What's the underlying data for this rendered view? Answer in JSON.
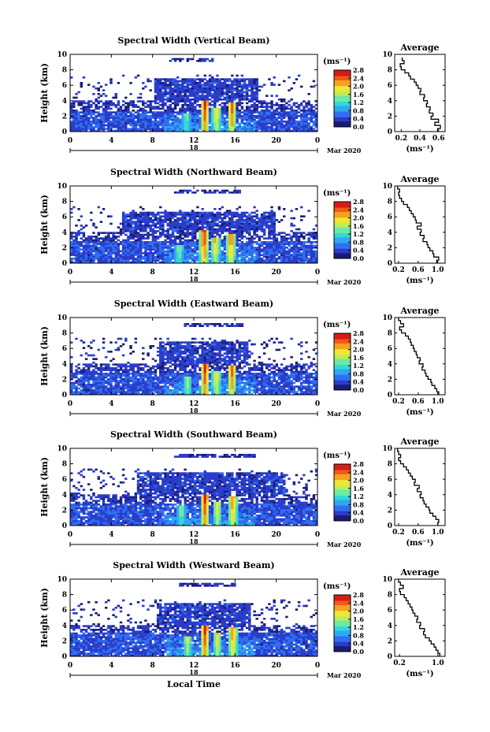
{
  "colors": {
    "colormap": [
      "#1b1b78",
      "#2a3cc8",
      "#2f6ff0",
      "#2fa8f2",
      "#33d8d8",
      "#6ee8a8",
      "#b8ee5c",
      "#f0e636",
      "#f7a21f",
      "#f05a1a",
      "#d81c14"
    ],
    "profile_line": "#000000"
  },
  "chart_data": [
    {
      "type": "heatmap",
      "title": "Spectral Width (Vertical Beam)",
      "ylabel": "Height (km)",
      "xlabel": "",
      "x_ticks": [
        "0",
        "4",
        "8",
        "12",
        "16",
        "20",
        "0"
      ],
      "y_ticks": [
        "0",
        "2",
        "4",
        "6",
        "8",
        "10"
      ],
      "xlim": [
        0,
        24
      ],
      "ylim": [
        0,
        10
      ],
      "date_day": "18",
      "date_month": "Mar 2020",
      "colorbar": {
        "units": "(ms⁻¹)",
        "ticks": [
          "0.0",
          "0.4",
          "0.8",
          "1.2",
          "1.6",
          "2.0",
          "2.4",
          "2.8"
        ],
        "range": [
          0,
          2.8
        ]
      },
      "layers": {
        "low_top": 2.6,
        "mid_top": 4.0,
        "cloud_start": 8.2,
        "cloud_end": 18.2,
        "cloud_base": 4.0,
        "cloud_top": 6.8,
        "high_band": [
          9.0,
          9.5
        ],
        "high_span": [
          9.6,
          14.0
        ]
      },
      "convective_cores": [
        {
          "time": 13.1,
          "top": 4.0,
          "peak": 2.8
        },
        {
          "time": 14.2,
          "top": 3.0,
          "peak": 2.2
        },
        {
          "time": 15.7,
          "top": 3.8,
          "peak": 2.6
        },
        {
          "time": 11.3,
          "top": 2.4,
          "peak": 1.6
        }
      ],
      "profile": {
        "title": "Average",
        "xlabel": "(ms⁻¹)",
        "x_ticks": [
          "0.2",
          "0.4",
          "0.6"
        ],
        "x_tick_values": [
          0.2,
          0.4,
          0.6
        ],
        "xlim": [
          0.13,
          0.67
        ],
        "y_ticks": [
          "0",
          "2",
          "4",
          "6",
          "8",
          "10"
        ],
        "height": [
          0.2,
          0.6,
          1.0,
          1.4,
          1.8,
          2.2,
          2.6,
          3.0,
          3.4,
          3.8,
          4.2,
          4.6,
          5.0,
          5.4,
          5.8,
          6.2,
          6.6,
          7.0,
          7.4,
          7.8,
          8.2,
          8.6,
          9.0,
          9.4
        ],
        "value": [
          0.59,
          0.62,
          0.56,
          0.6,
          0.52,
          0.54,
          0.5,
          0.51,
          0.47,
          0.48,
          0.44,
          0.45,
          0.4,
          0.41,
          0.38,
          0.36,
          0.34,
          0.3,
          0.28,
          0.24,
          0.2,
          0.19,
          0.23,
          0.21
        ]
      }
    },
    {
      "type": "heatmap",
      "title": "Spectral Width (Northward Beam)",
      "ylabel": "Height (km)",
      "xlabel": "",
      "x_ticks": [
        "0",
        "4",
        "8",
        "12",
        "16",
        "20",
        "0"
      ],
      "y_ticks": [
        "0",
        "2",
        "4",
        "6",
        "8",
        "10"
      ],
      "xlim": [
        0,
        24
      ],
      "ylim": [
        0,
        10
      ],
      "date_day": "18",
      "date_month": "Mar 2020",
      "colorbar": {
        "units": "(ms⁻¹)",
        "ticks": [
          "0.0",
          "0.4",
          "0.8",
          "1.2",
          "1.6",
          "2.0",
          "2.4",
          "2.8"
        ],
        "range": [
          0,
          2.8
        ]
      },
      "layers": {
        "low_top": 2.8,
        "mid_top": 4.0,
        "cloud_start": 5.0,
        "cloud_end": 20.0,
        "cloud_base": 4.0,
        "cloud_top": 6.6,
        "high_band": [
          9.0,
          9.6
        ],
        "high_span": [
          10.0,
          16.5
        ]
      },
      "convective_cores": [
        {
          "time": 13.0,
          "top": 4.2,
          "peak": 2.8
        },
        {
          "time": 14.1,
          "top": 3.4,
          "peak": 2.3
        },
        {
          "time": 15.6,
          "top": 3.8,
          "peak": 2.6
        },
        {
          "time": 10.6,
          "top": 2.4,
          "peak": 1.7
        }
      ],
      "profile": {
        "title": "Average",
        "xlabel": "(ms⁻¹)",
        "x_ticks": [
          "0.2",
          "0.6",
          "1.0"
        ],
        "x_tick_values": [
          0.2,
          0.6,
          1.0
        ],
        "xlim": [
          0.12,
          1.15
        ],
        "y_ticks": [
          "0",
          "2",
          "4",
          "6",
          "8",
          "10"
        ],
        "height": [
          0.2,
          0.6,
          1.0,
          1.4,
          1.8,
          2.2,
          2.6,
          3.0,
          3.4,
          3.8,
          4.2,
          4.6,
          5.0,
          5.4,
          5.8,
          6.2,
          6.6,
          7.0,
          7.4,
          7.8,
          8.2,
          8.6,
          9.0,
          9.4,
          9.8
        ],
        "value": [
          0.98,
          1.02,
          0.92,
          0.9,
          0.84,
          0.8,
          0.78,
          0.7,
          0.72,
          0.64,
          0.66,
          0.58,
          0.66,
          0.56,
          0.54,
          0.5,
          0.46,
          0.42,
          0.38,
          0.3,
          0.26,
          0.22,
          0.2,
          0.22,
          0.18
        ]
      }
    },
    {
      "type": "heatmap",
      "title": "Spectral Width (Eastward Beam)",
      "ylabel": "Height (km)",
      "xlabel": "",
      "x_ticks": [
        "0",
        "4",
        "8",
        "12",
        "16",
        "20",
        "0"
      ],
      "y_ticks": [
        "0",
        "2",
        "4",
        "6",
        "8",
        "10"
      ],
      "xlim": [
        0,
        24
      ],
      "ylim": [
        0,
        10
      ],
      "date_day": "18",
      "date_month": "Mar 2020",
      "colorbar": {
        "units": "(ms⁻¹)",
        "ticks": [
          "0.0",
          "0.4",
          "0.8",
          "1.2",
          "1.6",
          "2.0",
          "2.4",
          "2.8"
        ],
        "range": [
          0,
          2.8
        ]
      },
      "layers": {
        "low_top": 2.8,
        "mid_top": 4.0,
        "cloud_start": 8.6,
        "cloud_end": 17.2,
        "cloud_base": 4.0,
        "cloud_top": 6.8,
        "high_band": [
          8.8,
          9.4
        ],
        "high_span": [
          11.0,
          17.0
        ]
      },
      "convective_cores": [
        {
          "time": 13.1,
          "top": 4.0,
          "peak": 2.8
        },
        {
          "time": 14.2,
          "top": 3.2,
          "peak": 2.2
        },
        {
          "time": 15.7,
          "top": 3.8,
          "peak": 2.6
        },
        {
          "time": 11.4,
          "top": 2.4,
          "peak": 1.8
        }
      ],
      "profile": {
        "title": "Average",
        "xlabel": "(ms⁻¹)",
        "x_ticks": [
          "0.2",
          "0.6",
          "1.0"
        ],
        "x_tick_values": [
          0.2,
          0.6,
          1.0
        ],
        "xlim": [
          0.12,
          1.15
        ],
        "y_ticks": [
          "0",
          "2",
          "4",
          "6",
          "8",
          "10"
        ],
        "height": [
          0.2,
          0.6,
          1.0,
          1.4,
          1.8,
          2.2,
          2.6,
          3.0,
          3.4,
          3.8,
          4.2,
          4.6,
          5.0,
          5.4,
          5.8,
          6.2,
          6.6,
          7.0,
          7.4,
          7.8,
          8.2,
          8.6,
          9.0,
          9.4,
          9.8
        ],
        "value": [
          1.02,
          0.98,
          0.94,
          0.88,
          0.86,
          0.8,
          0.76,
          0.74,
          0.68,
          0.7,
          0.62,
          0.64,
          0.58,
          0.56,
          0.52,
          0.5,
          0.46,
          0.44,
          0.4,
          0.34,
          0.26,
          0.22,
          0.3,
          0.24,
          0.2
        ]
      }
    },
    {
      "type": "heatmap",
      "title": "Spectral Width (Southward Beam)",
      "ylabel": "Height (km)",
      "xlabel": "",
      "x_ticks": [
        "0",
        "4",
        "8",
        "12",
        "16",
        "20",
        "0"
      ],
      "y_ticks": [
        "0",
        "2",
        "4",
        "6",
        "8",
        "10"
      ],
      "xlim": [
        0,
        24
      ],
      "ylim": [
        0,
        10
      ],
      "date_day": "18",
      "date_month": "Mar 2020",
      "colorbar": {
        "units": "(ms⁻¹)",
        "ticks": [
          "0.0",
          "0.4",
          "0.8",
          "1.2",
          "1.6",
          "2.0",
          "2.4",
          "2.8"
        ],
        "range": [
          0,
          2.8
        ]
      },
      "layers": {
        "low_top": 2.8,
        "mid_top": 4.0,
        "cloud_start": 6.5,
        "cloud_end": 21.0,
        "cloud_base": 4.0,
        "cloud_top": 7.0,
        "high_band": [
          8.8,
          9.4
        ],
        "high_span": [
          10.0,
          18.0
        ]
      },
      "convective_cores": [
        {
          "time": 13.1,
          "top": 4.0,
          "peak": 2.8
        },
        {
          "time": 14.3,
          "top": 3.2,
          "peak": 2.1
        },
        {
          "time": 15.8,
          "top": 3.8,
          "peak": 2.5
        },
        {
          "time": 10.8,
          "top": 2.6,
          "peak": 1.7
        }
      ],
      "profile": {
        "title": "Average",
        "xlabel": "(ms⁻¹)",
        "x_ticks": [
          "0.2",
          "0.6",
          "1.0"
        ],
        "x_tick_values": [
          0.2,
          0.6,
          1.0
        ],
        "xlim": [
          0.12,
          1.15
        ],
        "y_ticks": [
          "0",
          "2",
          "4",
          "6",
          "8",
          "10"
        ],
        "height": [
          0.2,
          0.6,
          1.0,
          1.4,
          1.8,
          2.2,
          2.6,
          3.0,
          3.4,
          3.8,
          4.2,
          4.6,
          5.0,
          5.4,
          5.8,
          6.2,
          6.6,
          7.0,
          7.4,
          7.8,
          8.2,
          8.6,
          9.0,
          9.4,
          9.8
        ],
        "value": [
          1.0,
          1.02,
          0.96,
          0.9,
          0.84,
          0.82,
          0.76,
          0.72,
          0.7,
          0.64,
          0.66,
          0.58,
          0.62,
          0.52,
          0.54,
          0.48,
          0.44,
          0.4,
          0.36,
          0.3,
          0.24,
          0.2,
          0.24,
          0.2,
          0.18
        ]
      }
    },
    {
      "type": "heatmap",
      "title": "Spectral Width (Westward Beam)",
      "ylabel": "Height (km)",
      "xlabel": "Local Time",
      "x_ticks": [
        "0",
        "4",
        "8",
        "12",
        "16",
        "20",
        "0"
      ],
      "y_ticks": [
        "0",
        "2",
        "4",
        "6",
        "8",
        "10"
      ],
      "xlim": [
        0,
        24
      ],
      "ylim": [
        0,
        10
      ],
      "date_day": "18",
      "date_month": "Mar 2020",
      "colorbar": {
        "units": "(ms⁻¹)",
        "ticks": [
          "0.0",
          "0.4",
          "0.8",
          "1.2",
          "1.6",
          "2.0",
          "2.4",
          "2.8"
        ],
        "range": [
          0,
          2.8
        ]
      },
      "layers": {
        "low_top": 3.0,
        "mid_top": 4.0,
        "cloud_start": 8.4,
        "cloud_end": 17.6,
        "cloud_base": 4.0,
        "cloud_top": 7.0,
        "high_band": [
          9.0,
          9.6
        ],
        "high_span": [
          10.5,
          16.0
        ]
      },
      "convective_cores": [
        {
          "time": 13.1,
          "top": 4.0,
          "peak": 2.8
        },
        {
          "time": 14.3,
          "top": 3.0,
          "peak": 2.1
        },
        {
          "time": 15.8,
          "top": 3.8,
          "peak": 2.5
        },
        {
          "time": 11.4,
          "top": 2.6,
          "peak": 1.9
        }
      ],
      "profile": {
        "title": "Average",
        "xlabel": "(ms⁻¹)",
        "x_ticks": [
          "0.2",
          "1.0"
        ],
        "x_tick_values": [
          0.2,
          1.0
        ],
        "xlim": [
          0.1,
          1.15
        ],
        "y_ticks": [
          "0",
          "2",
          "4",
          "6",
          "8",
          "10"
        ],
        "height": [
          0.2,
          0.6,
          1.0,
          1.4,
          1.8,
          2.2,
          2.6,
          3.0,
          3.4,
          3.8,
          4.2,
          4.6,
          5.0,
          5.4,
          5.8,
          6.2,
          6.6,
          7.0,
          7.4,
          7.8,
          8.2,
          8.6,
          9.0,
          9.4,
          9.8
        ],
        "value": [
          1.04,
          1.0,
          0.96,
          0.92,
          0.86,
          0.82,
          0.74,
          0.7,
          0.72,
          0.62,
          0.64,
          0.56,
          0.58,
          0.52,
          0.48,
          0.46,
          0.42,
          0.38,
          0.34,
          0.3,
          0.22,
          0.2,
          0.28,
          0.22,
          0.18
        ]
      }
    }
  ]
}
